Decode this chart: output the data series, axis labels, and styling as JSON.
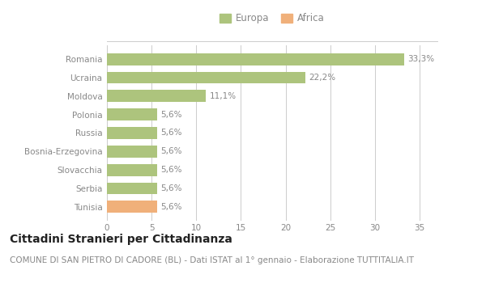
{
  "categories": [
    "Tunisia",
    "Serbia",
    "Slovacchia",
    "Bosnia-Erzegovina",
    "Russia",
    "Polonia",
    "Moldova",
    "Ucraina",
    "Romania"
  ],
  "values": [
    5.6,
    5.6,
    5.6,
    5.6,
    5.6,
    5.6,
    11.1,
    22.2,
    33.3
  ],
  "labels": [
    "5,6%",
    "5,6%",
    "5,6%",
    "5,6%",
    "5,6%",
    "5,6%",
    "11,1%",
    "22,2%",
    "33,3%"
  ],
  "colors": [
    "#f0b07a",
    "#adc47d",
    "#adc47d",
    "#adc47d",
    "#adc47d",
    "#adc47d",
    "#adc47d",
    "#adc47d",
    "#adc47d"
  ],
  "legend_labels": [
    "Europa",
    "Africa"
  ],
  "legend_colors": [
    "#adc47d",
    "#f0b07a"
  ],
  "xlim": [
    0,
    37
  ],
  "xticks": [
    0,
    5,
    10,
    15,
    20,
    25,
    30,
    35
  ],
  "title": "Cittadini Stranieri per Cittadinanza",
  "subtitle": "COMUNE DI SAN PIETRO DI CADORE (BL) - Dati ISTAT al 1° gennaio - Elaborazione TUTTITALIA.IT",
  "bg_color": "#ffffff",
  "plot_bg_color": "#ffffff",
  "grid_color": "#cccccc",
  "text_color": "#888888",
  "title_color": "#222222",
  "subtitle_color": "#888888",
  "title_fontsize": 10,
  "subtitle_fontsize": 7.5,
  "label_fontsize": 7.5,
  "ytick_fontsize": 7.5,
  "xtick_fontsize": 7.5,
  "bar_height": 0.65
}
